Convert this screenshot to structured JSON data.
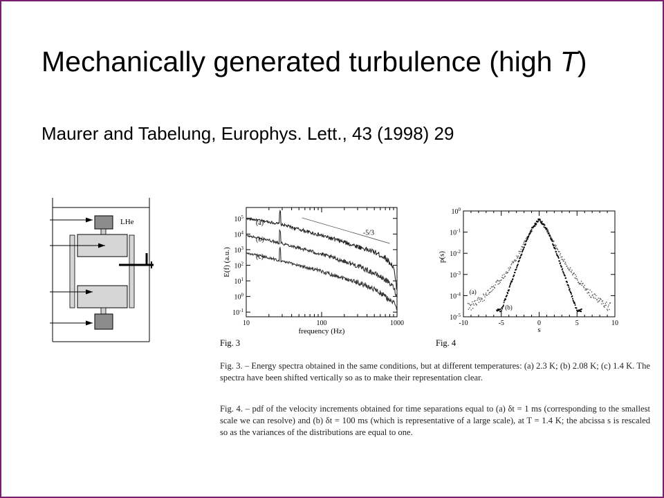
{
  "slide": {
    "title_text": "Mechanically generated turbulence (high ",
    "title_italic": "T",
    "title_close": ")",
    "reference": "Maurer and Tabelung, Europhys. Lett., 43 (1998) 29",
    "border_color": "#7a1f6e"
  },
  "apparatus": {
    "label": "LHe"
  },
  "chart_data": [
    {
      "type": "line",
      "figure_label": "Fig. 3",
      "xlabel": "frequency (Hz)",
      "ylabel": "E(f) (a.u.)",
      "x_scale": "log",
      "y_scale": "log",
      "xlim": [
        10,
        1000
      ],
      "ylim": [
        0.05,
        500000
      ],
      "x_ticks": [
        "10",
        "100",
        "1000"
      ],
      "y_ticks": [
        "10-1",
        "100",
        "101",
        "102",
        "103",
        "104",
        "105"
      ],
      "annotation": "-5/3",
      "series": [
        {
          "name": "(a)",
          "x": [
            10,
            20,
            30,
            50,
            100,
            200,
            300,
            500,
            700,
            900,
            1000
          ],
          "y": [
            100000,
            60000,
            40000,
            20000,
            8000,
            3000,
            1600,
            700,
            300,
            80,
            2
          ]
        },
        {
          "name": "(b)",
          "x": [
            10,
            20,
            30,
            50,
            100,
            200,
            300,
            500,
            700,
            900,
            1000
          ],
          "y": [
            8000,
            4000,
            2500,
            1300,
            500,
            180,
            90,
            30,
            12,
            4,
            1
          ]
        },
        {
          "name": "(c)",
          "x": [
            10,
            20,
            30,
            50,
            100,
            200,
            300,
            500,
            700,
            900,
            1000
          ],
          "y": [
            600,
            300,
            180,
            100,
            40,
            15,
            8,
            3,
            1,
            0.4,
            0.15
          ]
        }
      ]
    },
    {
      "type": "scatter",
      "figure_label": "Fig. 4",
      "xlabel": "s",
      "ylabel": "p(s)",
      "x_scale": "linear",
      "y_scale": "log",
      "xlim": [
        -10,
        10
      ],
      "ylim": [
        1e-05,
        1
      ],
      "x_ticks": [
        "-10",
        "-5",
        "0",
        "5",
        "10"
      ],
      "y_ticks": [
        "100",
        "10-1",
        "10-2",
        "10-3",
        "10-4",
        "10-5"
      ],
      "series": [
        {
          "name": "(a)",
          "x": [
            -9,
            -7,
            -5,
            -3,
            -2,
            -1,
            0,
            1,
            2,
            3,
            5,
            7,
            9
          ],
          "y": [
            3e-05,
            0.0001,
            0.0006,
            0.006,
            0.03,
            0.12,
            0.38,
            0.12,
            0.03,
            0.006,
            0.0006,
            0.0001,
            3e-05
          ]
        },
        {
          "name": "(b)",
          "x": [
            -5,
            -4,
            -3,
            -2,
            -1,
            0,
            1,
            2,
            3,
            4,
            5
          ],
          "y": [
            2e-05,
            0.0002,
            0.002,
            0.02,
            0.14,
            0.42,
            0.14,
            0.02,
            0.002,
            0.0002,
            2e-05
          ]
        }
      ]
    }
  ],
  "captions": {
    "fig3": "Fig. 3. – Energy spectra obtained in the same conditions, but at different temperatures: (a) 2.3 K; (b) 2.08 K; (c) 1.4 K. The spectra have been shifted vertically so as to make their representation clear.",
    "fig4": "Fig. 4. – pdf of the velocity increments obtained for time separations equal to (a) δt = 1 ms (corresponding to the smallest scale we can resolve) and (b) δt = 100 ms (which is representative of a large scale), at T = 1.4 K; the abcissa s is rescaled so as the variances of the distributions are equal to one."
  }
}
